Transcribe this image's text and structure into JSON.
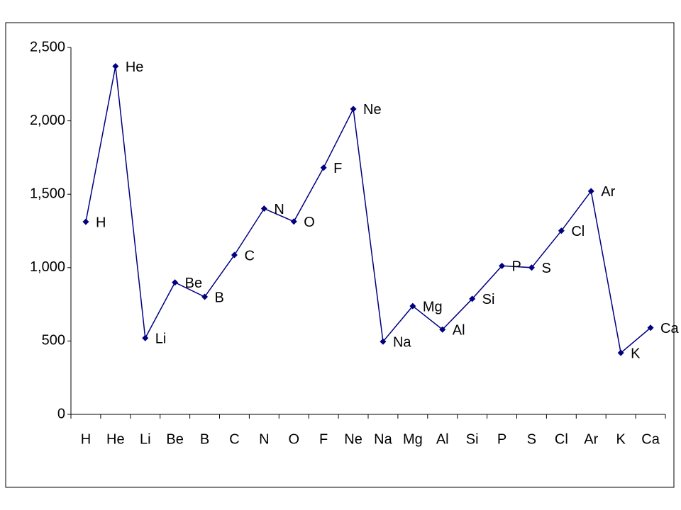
{
  "chart_data": {
    "type": "line",
    "categories": [
      "H",
      "He",
      "Li",
      "Be",
      "B",
      "C",
      "N",
      "O",
      "F",
      "Ne",
      "Na",
      "Mg",
      "Al",
      "Si",
      "P",
      "S",
      "Cl",
      "Ar",
      "K",
      "Ca"
    ],
    "values": [
      1312,
      2372,
      520,
      899,
      801,
      1086,
      1402,
      1314,
      1681,
      2081,
      496,
      738,
      578,
      787,
      1012,
      1000,
      1251,
      1521,
      419,
      590
    ],
    "color": "#000080",
    "ylim": [
      0,
      2500
    ],
    "yticks": [
      0,
      500,
      {
        "value": 1000,
        "label": "1,000"
      },
      {
        "value": 1500,
        "label": "1,500"
      },
      {
        "value": 2000,
        "label": "2,000"
      },
      {
        "value": 2500,
        "label": "2,500"
      }
    ],
    "grid": false
  }
}
